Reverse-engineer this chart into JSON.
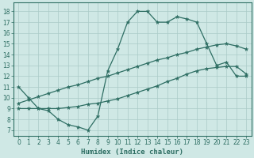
{
  "xlabel": "Humidex (Indice chaleur)",
  "xlim": [
    -0.5,
    23.5
  ],
  "ylim": [
    6.5,
    18.8
  ],
  "yticks": [
    7,
    8,
    9,
    10,
    11,
    12,
    13,
    14,
    15,
    16,
    17,
    18
  ],
  "xticks": [
    0,
    1,
    2,
    3,
    4,
    5,
    6,
    7,
    8,
    9,
    10,
    11,
    12,
    13,
    14,
    15,
    16,
    17,
    18,
    19,
    20,
    21,
    22,
    23
  ],
  "bg_color": "#cfe8e5",
  "line_color": "#2e6e63",
  "grid_color": "#aacbc7",
  "line1_x": [
    0,
    1,
    2,
    3,
    4,
    5,
    6,
    7,
    8,
    9,
    10,
    11,
    12,
    13,
    14,
    15,
    16,
    17,
    18,
    19,
    20,
    21,
    22,
    23
  ],
  "line1_y": [
    11,
    10,
    9,
    8.8,
    8,
    7.5,
    7.3,
    7.0,
    8.3,
    12.5,
    14.5,
    17.0,
    18.0,
    18.0,
    17.0,
    17.0,
    17.5,
    17.3,
    17.0,
    15.0,
    13.0,
    13.3,
    12.0,
    12.0
  ],
  "line2_x": [
    0,
    1,
    2,
    3,
    4,
    5,
    6,
    7,
    8,
    9,
    10,
    11,
    12,
    13,
    14,
    15,
    16,
    17,
    18,
    19,
    20,
    21,
    22,
    23
  ],
  "line2_y": [
    9.0,
    9.0,
    9.0,
    9.0,
    9.0,
    9.1,
    9.2,
    9.4,
    9.5,
    9.7,
    9.9,
    10.2,
    10.5,
    10.8,
    11.1,
    11.5,
    11.8,
    12.2,
    12.5,
    12.7,
    12.8,
    12.9,
    12.9,
    12.2
  ],
  "line3_x": [
    0,
    1,
    2,
    3,
    4,
    5,
    6,
    7,
    8,
    9,
    10,
    11,
    12,
    13,
    14,
    15,
    16,
    17,
    18,
    19,
    20,
    21,
    22,
    23
  ],
  "line3_y": [
    9.5,
    9.8,
    10.1,
    10.4,
    10.7,
    11.0,
    11.2,
    11.5,
    11.8,
    12.0,
    12.3,
    12.6,
    12.9,
    13.2,
    13.5,
    13.7,
    14.0,
    14.2,
    14.5,
    14.7,
    14.9,
    15.0,
    14.8,
    14.5
  ]
}
